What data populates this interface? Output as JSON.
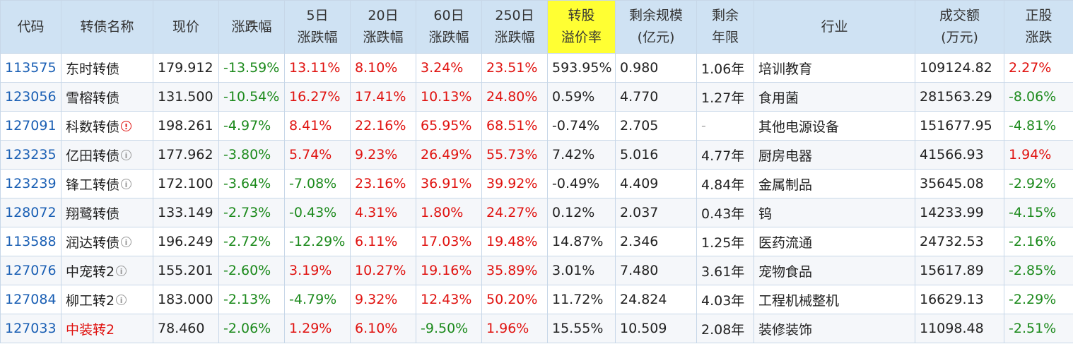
{
  "headers": {
    "code": "代码",
    "name": "转债名称",
    "price": "现价",
    "chg": "涨跌幅",
    "chg5_l1": "5日",
    "chg5_l2": "涨跌幅",
    "chg20_l1": "20日",
    "chg20_l2": "涨跌幅",
    "chg60_l1": "60日",
    "chg60_l2": "涨跌幅",
    "chg250_l1": "250日",
    "chg250_l2": "涨跌幅",
    "premium_l1": "转股",
    "premium_l2": "溢价率",
    "size_l1": "剩余规模",
    "size_l2": "(亿元)",
    "years_l1": "剩余",
    "years_l2": "年限",
    "industry": "行业",
    "volume_l1": "成交额",
    "volume_l2": "(万元)",
    "stock_l1": "正股",
    "stock_l2": "涨跌"
  },
  "colors": {
    "header_bg": "#cfe2f3",
    "highlight": "#ffff33",
    "up": "#e0120f",
    "down": "#1c8a1c",
    "code": "#1a5fb4"
  },
  "rows": [
    {
      "code": "113575",
      "name": "东时转债",
      "badge": "",
      "price": "179.912",
      "chg": "-13.59%",
      "chg5": "13.11%",
      "chg20": "8.10%",
      "chg60": "3.24%",
      "chg250": "23.51%",
      "premium": "593.95%",
      "size": "0.980",
      "years": "1.06年",
      "industry": "培训教育",
      "volume": "109124.82",
      "stock": "2.27%"
    },
    {
      "code": "123056",
      "name": "雪榕转债",
      "badge": "",
      "price": "131.500",
      "chg": "-10.54%",
      "chg5": "16.27%",
      "chg20": "17.41%",
      "chg60": "10.13%",
      "chg250": "24.80%",
      "premium": "0.59%",
      "size": "4.770",
      "years": "1.27年",
      "industry": "食用菌",
      "volume": "281563.29",
      "stock": "-8.06%"
    },
    {
      "code": "127091",
      "name": "科数转债",
      "badge": "warn",
      "price": "198.261",
      "chg": "-4.97%",
      "chg5": "8.41%",
      "chg20": "22.16%",
      "chg60": "65.95%",
      "chg250": "68.51%",
      "premium": "-0.74%",
      "size": "2.705",
      "years": "-",
      "industry": "其他电源设备",
      "volume": "151677.95",
      "stock": "-4.81%"
    },
    {
      "code": "123235",
      "name": "亿田转债",
      "badge": "info",
      "price": "177.962",
      "chg": "-3.80%",
      "chg5": "5.74%",
      "chg20": "9.23%",
      "chg60": "26.49%",
      "chg250": "55.73%",
      "premium": "7.42%",
      "size": "5.016",
      "years": "4.77年",
      "industry": "厨房电器",
      "volume": "41566.93",
      "stock": "1.94%"
    },
    {
      "code": "123239",
      "name": "锋工转债",
      "badge": "info",
      "price": "172.100",
      "chg": "-3.64%",
      "chg5": "-7.08%",
      "chg20": "23.16%",
      "chg60": "36.91%",
      "chg250": "39.92%",
      "premium": "-0.49%",
      "size": "4.409",
      "years": "4.84年",
      "industry": "金属制品",
      "volume": "35645.08",
      "stock": "-2.92%"
    },
    {
      "code": "128072",
      "name": "翔鹭转债",
      "badge": "",
      "price": "133.149",
      "chg": "-2.73%",
      "chg5": "-0.43%",
      "chg20": "4.31%",
      "chg60": "1.80%",
      "chg250": "24.27%",
      "premium": "0.12%",
      "size": "2.037",
      "years": "0.43年",
      "industry": "钨",
      "volume": "14233.99",
      "stock": "-4.15%"
    },
    {
      "code": "113588",
      "name": "润达转债",
      "badge": "info",
      "price": "196.249",
      "chg": "-2.72%",
      "chg5": "-12.29%",
      "chg20": "6.11%",
      "chg60": "17.03%",
      "chg250": "19.48%",
      "premium": "14.87%",
      "size": "2.346",
      "years": "1.25年",
      "industry": "医药流通",
      "volume": "24732.53",
      "stock": "-2.16%"
    },
    {
      "code": "127076",
      "name": "中宠转2",
      "badge": "info",
      "price": "155.201",
      "chg": "-2.60%",
      "chg5": "3.19%",
      "chg20": "10.27%",
      "chg60": "19.16%",
      "chg250": "35.89%",
      "premium": "3.01%",
      "size": "7.480",
      "years": "3.61年",
      "industry": "宠物食品",
      "volume": "15617.89",
      "stock": "-2.85%"
    },
    {
      "code": "127084",
      "name": "柳工转2",
      "badge": "info",
      "price": "183.000",
      "chg": "-2.13%",
      "chg5": "-4.79%",
      "chg20": "9.32%",
      "chg60": "12.43%",
      "chg250": "50.20%",
      "premium": "11.72%",
      "size": "24.824",
      "years": "4.03年",
      "industry": "工程机械整机",
      "volume": "16629.13",
      "stock": "-2.29%"
    },
    {
      "code": "127033",
      "name": "中装转2",
      "badge": "",
      "namecolor": "red",
      "price": "78.460",
      "chg": "-2.06%",
      "chg5": "1.29%",
      "chg20": "6.10%",
      "chg60": "-9.50%",
      "chg250": "1.96%",
      "premium": "15.55%",
      "size": "10.509",
      "years": "2.08年",
      "industry": "装修装饰",
      "volume": "11098.48",
      "stock": "-2.51%"
    }
  ]
}
